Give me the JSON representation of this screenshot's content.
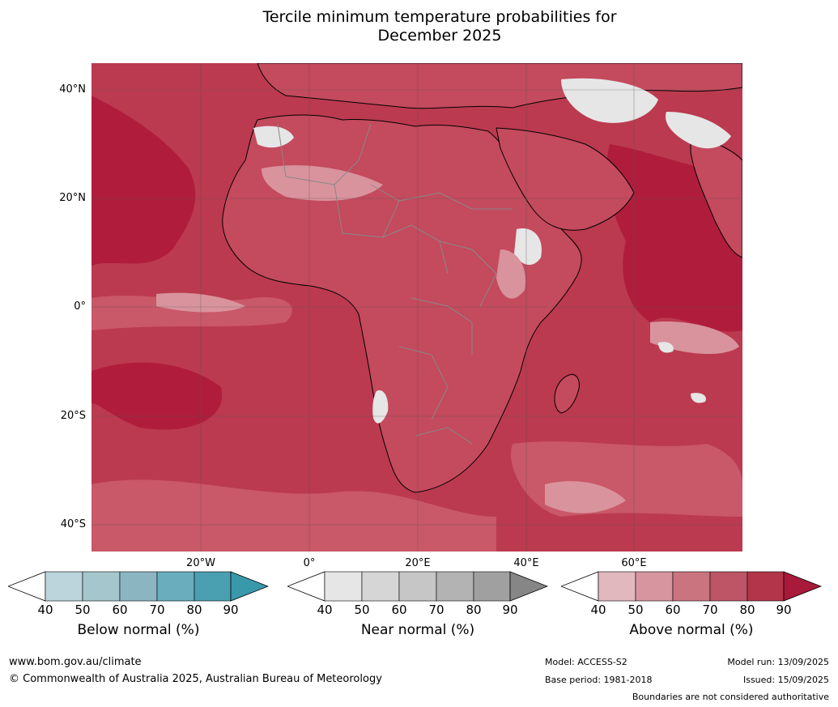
{
  "title_line1": "Tercile minimum temperature probabilities for",
  "title_line2": "December 2025",
  "lat_labels": [
    "40°N",
    "20°N",
    "0°",
    "20°S",
    "40°S"
  ],
  "lon_labels": [
    "20°W",
    "0°",
    "20°E",
    "40°E",
    "60°E"
  ],
  "colorbars": [
    {
      "id": "below",
      "title": "Below normal (%)",
      "ticks": [
        "40",
        "50",
        "60",
        "70",
        "80",
        "90"
      ],
      "colors": [
        "#bcd4dc",
        "#a6c6ce",
        "#8bb6c1",
        "#6aaebd",
        "#4a9fb1"
      ],
      "arrow": "#3a98ab"
    },
    {
      "id": "near",
      "title": "Near normal (%)",
      "ticks": [
        "40",
        "50",
        "60",
        "70",
        "80",
        "90"
      ],
      "colors": [
        "#e6e6e6",
        "#d6d6d6",
        "#c6c6c6",
        "#b3b3b3",
        "#a0a0a0"
      ],
      "arrow": "#868686"
    },
    {
      "id": "above",
      "title": "Above normal (%)",
      "ticks": [
        "40",
        "50",
        "60",
        "70",
        "80",
        "90"
      ],
      "colors": [
        "#e2b8bf",
        "#d6959f",
        "#c9747f",
        "#bd5566",
        "#b23549"
      ],
      "arrow": "#a8193a"
    }
  ],
  "footer": {
    "url": "www.bom.gov.au/climate",
    "copyright": "© Commonwealth of Australia 2025, Australian Bureau of Meteorology",
    "model": "Model: ACCESS-S2",
    "base_period": "Base period: 1981-2018",
    "model_run": "Model run: 13/09/2025",
    "issued": "Issued: 15/09/2025",
    "disclaimer": "Boundaries are not considered authoritative"
  },
  "map_colors": {
    "ocean_base": "#bb3a4f",
    "strong": "#b01d3c",
    "mid": "#c95868",
    "light": "#d9939d",
    "pale": "#e3b9be",
    "near": "#e6e6e6",
    "coast": "#000000",
    "border": "#888888",
    "grid": "#555555"
  }
}
